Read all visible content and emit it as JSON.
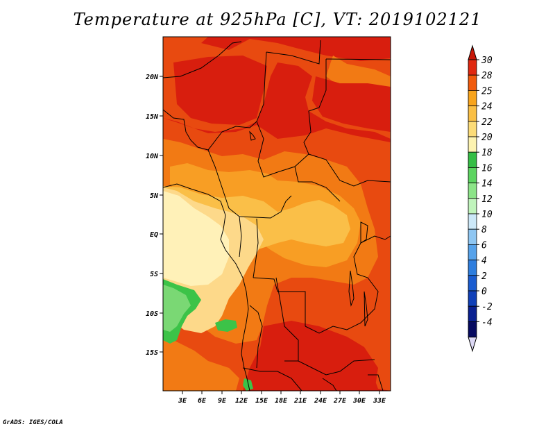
{
  "title": "Temperature at 925hPa [C], VT: 2019102121",
  "credit": "GrADS: IGES/COLA",
  "lat_ticks": [
    "20N",
    "15N",
    "10N",
    "5N",
    "EQ",
    "5S",
    "10S",
    "15S"
  ],
  "lon_ticks": [
    "3E",
    "6E",
    "9E",
    "12E",
    "15E",
    "18E",
    "21E",
    "24E",
    "27E",
    "30E",
    "33E"
  ],
  "colorbar": {
    "labels": [
      "30",
      "28",
      "25",
      "24",
      "22",
      "20",
      "18",
      "16",
      "14",
      "12",
      "10",
      "8",
      "6",
      "4",
      "2",
      "0",
      "-2",
      "-4"
    ],
    "colors": [
      "#e02810",
      "#f05a0c",
      "#f8a41c",
      "#fabf44",
      "#fcdc78",
      "#fdf3b0",
      "#35be45",
      "#5cd460",
      "#8ce488",
      "#c0f4bc",
      "#cce8f8",
      "#8ec6f2",
      "#56a2ea",
      "#2e7ede",
      "#1a5cd0",
      "#1040b8",
      "#0a2090",
      "#060a60"
    ],
    "top_color": "#c81808",
    "bottom_color": "#dcd8f4"
  },
  "field_colors": {
    "gt30": "#d81e0e",
    "c28_30": "#e84a10",
    "c25_28": "#f27a14",
    "c24_25": "#f89e24",
    "c22_24": "#fabf48",
    "c20_22": "#fdd98a",
    "c18_20": "#fff1b8",
    "c16_18": "#3cc348",
    "c14_16": "#7ad874"
  }
}
